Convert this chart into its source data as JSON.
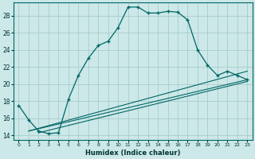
{
  "xlabel": "Humidex (Indice chaleur)",
  "bg_color": "#cce8e8",
  "grid_color": "#aacccc",
  "line_color": "#006666",
  "xlim": [
    -0.5,
    23.5
  ],
  "ylim": [
    13.5,
    29.5
  ],
  "yticks": [
    14,
    16,
    18,
    20,
    22,
    24,
    26,
    28
  ],
  "xticks": [
    0,
    1,
    2,
    3,
    4,
    5,
    6,
    7,
    8,
    9,
    10,
    11,
    12,
    13,
    14,
    15,
    16,
    17,
    18,
    19,
    20,
    21,
    22,
    23
  ],
  "line1_x": [
    0,
    1,
    2,
    3,
    4,
    5,
    6,
    7,
    8,
    9,
    10,
    11,
    12,
    13,
    14,
    15,
    16,
    17,
    18,
    19,
    20,
    21,
    22,
    23
  ],
  "line1_y": [
    17.5,
    15.8,
    14.5,
    14.2,
    14.3,
    18.2,
    21.0,
    23.0,
    24.5,
    25.0,
    26.6,
    29.0,
    29.0,
    28.3,
    28.3,
    28.5,
    28.4,
    27.5,
    24.0,
    22.2,
    21.0,
    21.5,
    21.0,
    20.5
  ],
  "line2_x": [
    1,
    23
  ],
  "line2_y": [
    14.5,
    21.5
  ],
  "line3_x": [
    1,
    23
  ],
  "line3_y": [
    14.5,
    20.5
  ],
  "line4_x": [
    2,
    23
  ],
  "line4_y": [
    14.3,
    20.3
  ]
}
